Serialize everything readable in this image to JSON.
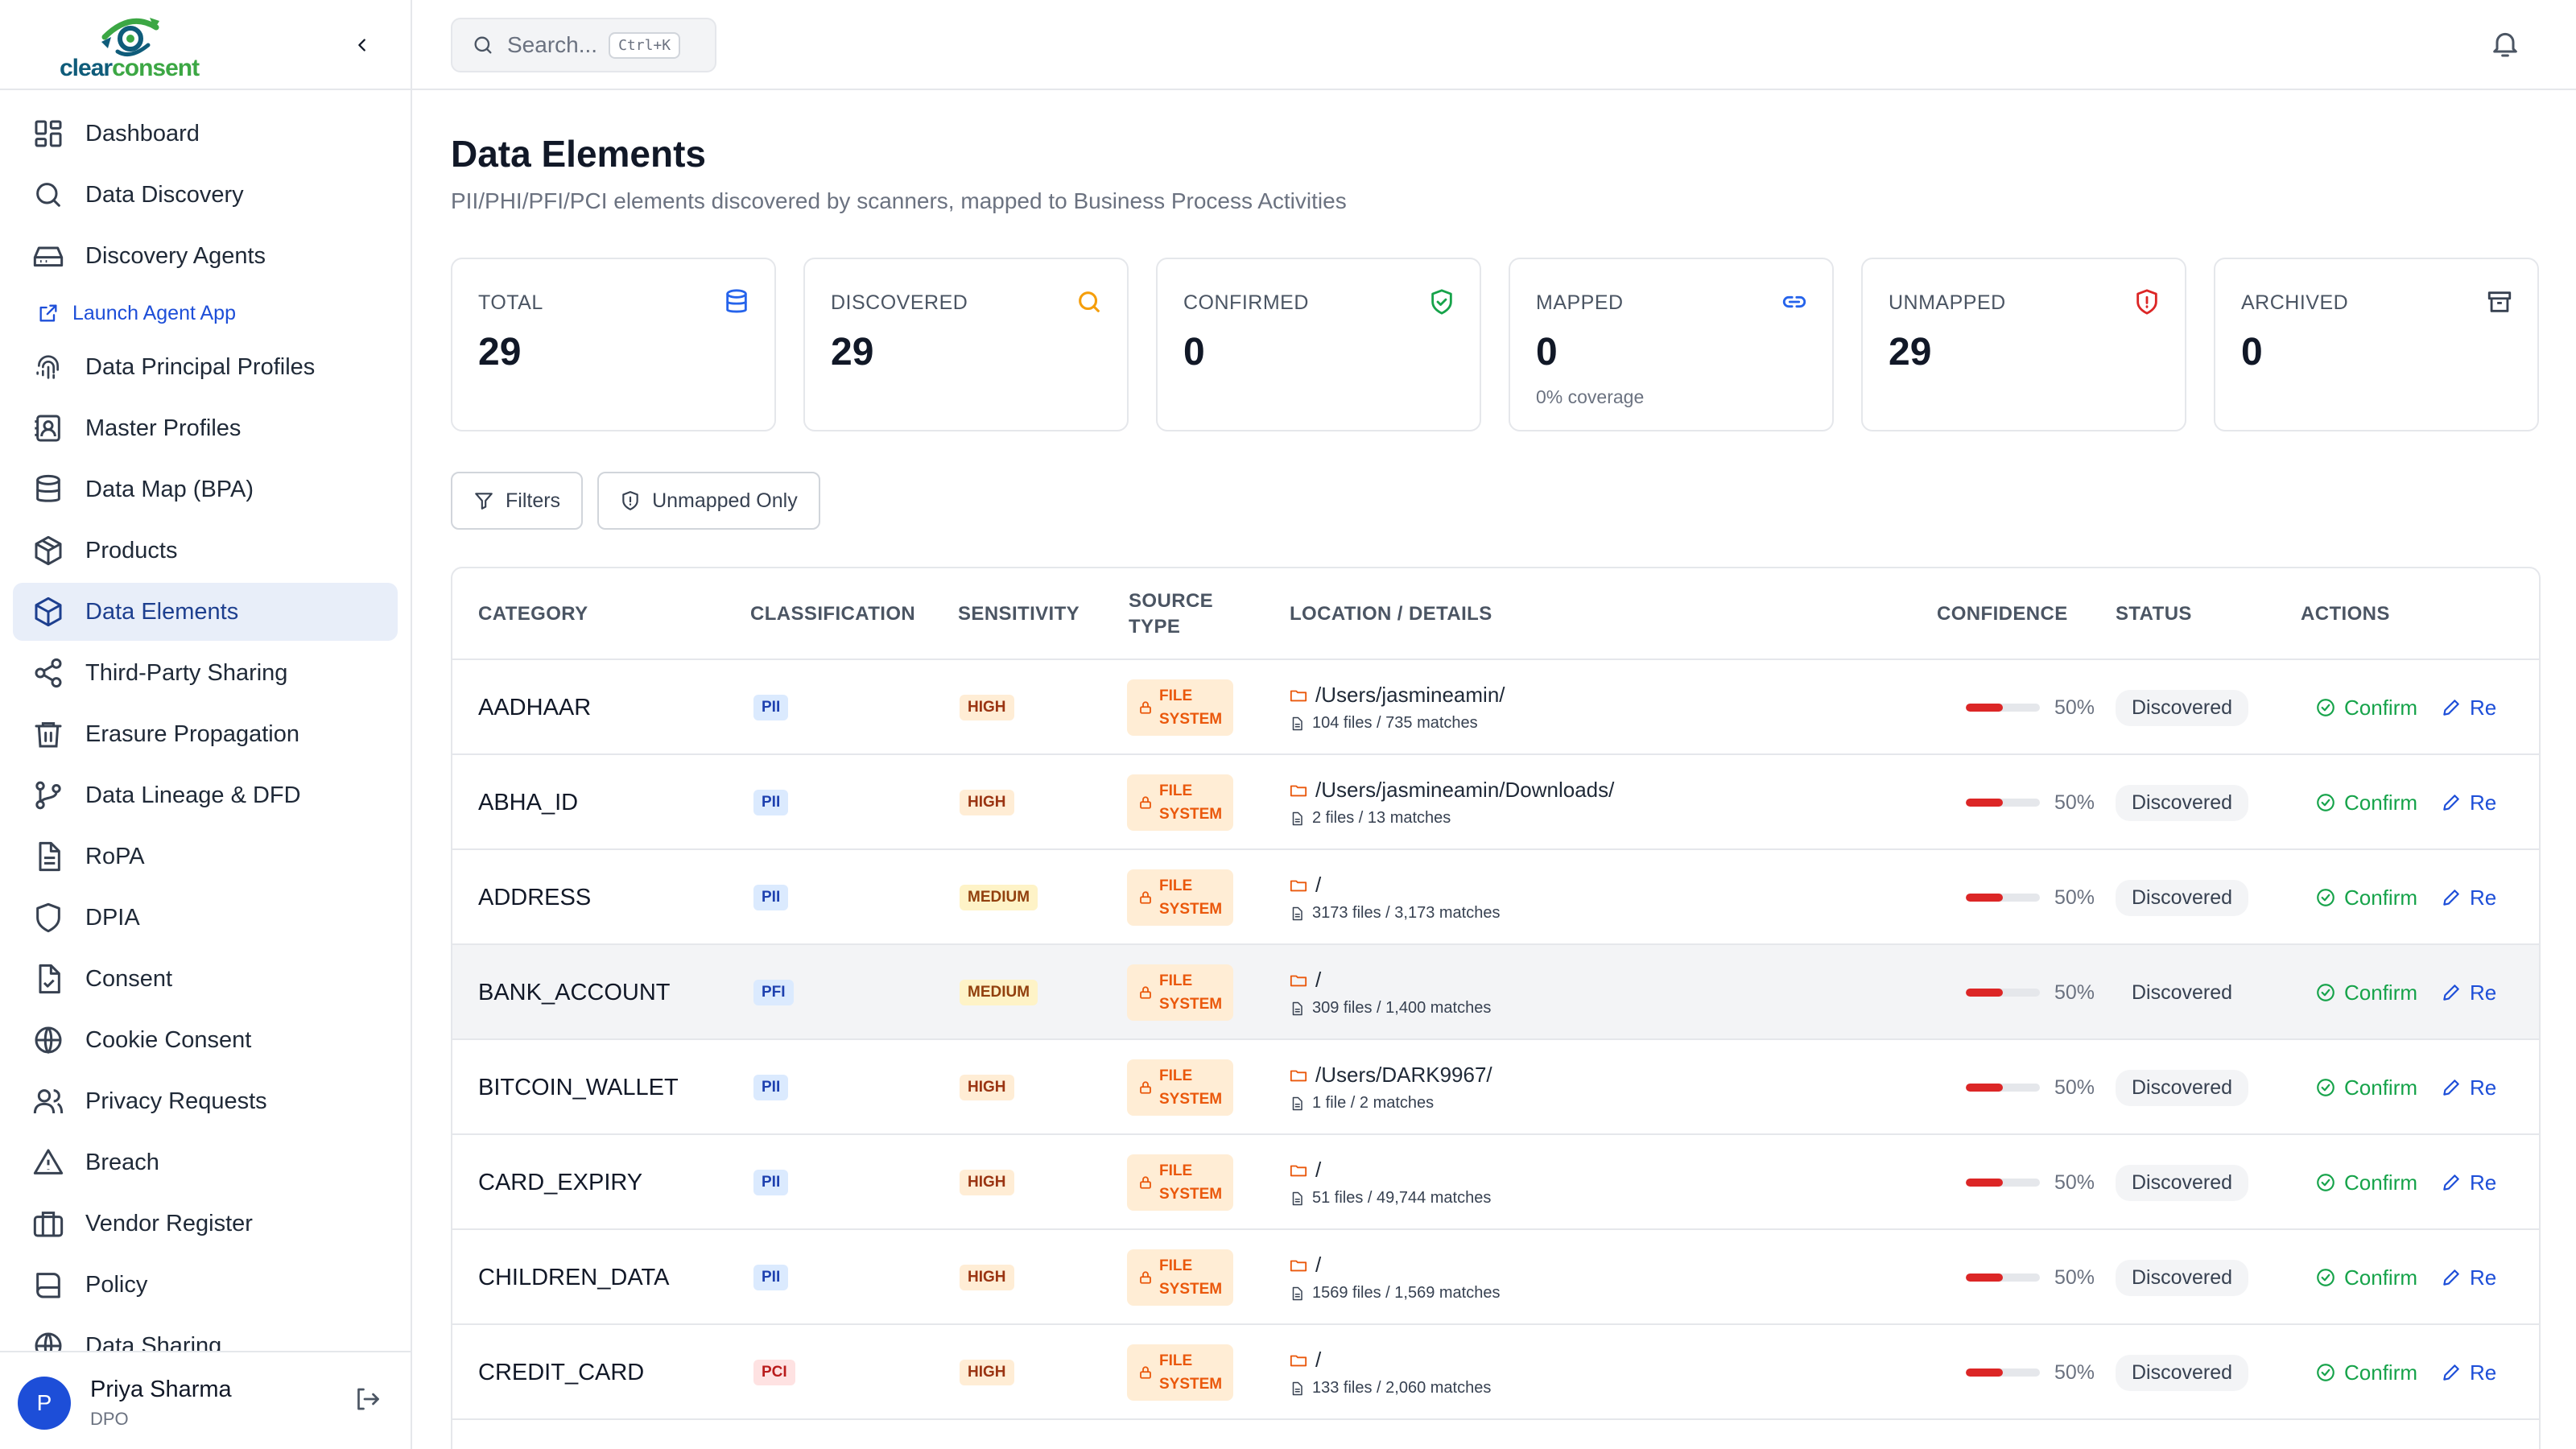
{
  "brand": {
    "name_part1": "clear",
    "name_part2": "consent"
  },
  "sidebar": {
    "items": [
      {
        "label": "Dashboard",
        "icon": "grid-icon"
      },
      {
        "label": "Data Discovery",
        "icon": "search-icon"
      },
      {
        "label": "Discovery Agents",
        "icon": "drive-icon"
      },
      {
        "label": "Launch Agent App",
        "icon": "external-link-icon"
      },
      {
        "label": "Data Principal Profiles",
        "icon": "fingerprint-icon"
      },
      {
        "label": "Master Profiles",
        "icon": "contact-book-icon"
      },
      {
        "label": "Data Map (BPA)",
        "icon": "database-icon"
      },
      {
        "label": "Products",
        "icon": "package-icon"
      },
      {
        "label": "Data Elements",
        "icon": "box-icon"
      },
      {
        "label": "Third-Party Sharing",
        "icon": "share-icon"
      },
      {
        "label": "Erasure Propagation",
        "icon": "trash-icon"
      },
      {
        "label": "Data Lineage & DFD",
        "icon": "git-branch-icon"
      },
      {
        "label": "RoPA",
        "icon": "document-icon"
      },
      {
        "label": "DPIA",
        "icon": "shield-icon"
      },
      {
        "label": "Consent",
        "icon": "file-check-icon"
      },
      {
        "label": "Cookie Consent",
        "icon": "globe-icon"
      },
      {
        "label": "Privacy Requests",
        "icon": "users-icon"
      },
      {
        "label": "Breach",
        "icon": "warning-icon"
      },
      {
        "label": "Vendor Register",
        "icon": "briefcase-icon"
      },
      {
        "label": "Policy",
        "icon": "book-icon"
      },
      {
        "label": "Data Sharing",
        "icon": "globe-icon"
      }
    ],
    "active": "Data Elements"
  },
  "user": {
    "initial": "P",
    "name": "Priya Sharma",
    "role": "DPO"
  },
  "search": {
    "placeholder": "Search...",
    "shortcut": "Ctrl+K"
  },
  "page": {
    "title": "Data Elements",
    "subtitle": "PII/PHI/PFI/PCI elements discovered by scanners, mapped to Business Process Activities"
  },
  "stats": [
    {
      "label": "TOTAL",
      "value": "29",
      "sub": "",
      "icon": "database-icon",
      "color": "#2563eb"
    },
    {
      "label": "DISCOVERED",
      "value": "29",
      "sub": "",
      "icon": "search-icon",
      "color": "#f59e0b"
    },
    {
      "label": "CONFIRMED",
      "value": "0",
      "sub": "",
      "icon": "shield-check-icon",
      "color": "#16a34a"
    },
    {
      "label": "MAPPED",
      "value": "0",
      "sub": "0% coverage",
      "icon": "link-icon",
      "color": "#2563eb"
    },
    {
      "label": "UNMAPPED",
      "value": "29",
      "sub": "",
      "icon": "shield-alert-icon",
      "color": "#dc2626"
    },
    {
      "label": "ARCHIVED",
      "value": "0",
      "sub": "",
      "icon": "archive-icon",
      "color": "#374151"
    }
  ],
  "filters": {
    "filters_label": "Filters",
    "unmapped_label": "Unmapped Only"
  },
  "table": {
    "headers": {
      "category": "CATEGORY",
      "classification": "CLASSIFICATION",
      "sensitivity": "SENSITIVITY",
      "source_type_1": "SOURCE",
      "source_type_2": "TYPE",
      "location": "LOCATION / DETAILS",
      "confidence": "CONFIDENCE",
      "status": "STATUS",
      "actions": "ACTIONS"
    },
    "rows": [
      {
        "category": "AADHAAR",
        "classification": "PII",
        "sensitivity": "HIGH",
        "source1": "FILE",
        "source2": "SYSTEM",
        "path": "/Users/jasmineamin/",
        "details": "104 files / 735 matches",
        "confidence": "50%",
        "confidence_value": 50,
        "status": "Discovered",
        "confirm": "Confirm",
        "remap": "Re"
      },
      {
        "category": "ABHA_ID",
        "classification": "PII",
        "sensitivity": "HIGH",
        "source1": "FILE",
        "source2": "SYSTEM",
        "path": "/Users/jasmineamin/Downloads/",
        "details": "2 files / 13 matches",
        "confidence": "50%",
        "confidence_value": 50,
        "status": "Discovered",
        "confirm": "Confirm",
        "remap": "Re"
      },
      {
        "category": "ADDRESS",
        "classification": "PII",
        "sensitivity": "MEDIUM",
        "source1": "FILE",
        "source2": "SYSTEM",
        "path": "/",
        "details": "3173 files / 3,173 matches",
        "confidence": "50%",
        "confidence_value": 50,
        "status": "Discovered",
        "confirm": "Confirm",
        "remap": "Re"
      },
      {
        "category": "BANK_ACCOUNT",
        "classification": "PFI",
        "sensitivity": "MEDIUM",
        "source1": "FILE",
        "source2": "SYSTEM",
        "path": "/",
        "details": "309 files / 1,400 matches",
        "confidence": "50%",
        "confidence_value": 50,
        "status": "Discovered",
        "confirm": "Confirm",
        "remap": "Re"
      },
      {
        "category": "BITCOIN_WALLET",
        "classification": "PII",
        "sensitivity": "HIGH",
        "source1": "FILE",
        "source2": "SYSTEM",
        "path": "/Users/DARK9967/",
        "details": "1 file / 2 matches",
        "confidence": "50%",
        "confidence_value": 50,
        "status": "Discovered",
        "confirm": "Confirm",
        "remap": "Re"
      },
      {
        "category": "CARD_EXPIRY",
        "classification": "PII",
        "sensitivity": "HIGH",
        "source1": "FILE",
        "source2": "SYSTEM",
        "path": "/",
        "details": "51 files / 49,744 matches",
        "confidence": "50%",
        "confidence_value": 50,
        "status": "Discovered",
        "confirm": "Confirm",
        "remap": "Re"
      },
      {
        "category": "CHILDREN_DATA",
        "classification": "PII",
        "sensitivity": "HIGH",
        "source1": "FILE",
        "source2": "SYSTEM",
        "path": "/",
        "details": "1569 files / 1,569 matches",
        "confidence": "50%",
        "confidence_value": 50,
        "status": "Discovered",
        "confirm": "Confirm",
        "remap": "Re"
      },
      {
        "category": "CREDIT_CARD",
        "classification": "PCI",
        "sensitivity": "HIGH",
        "source1": "FILE",
        "source2": "SYSTEM",
        "path": "/",
        "details": "133 files / 2,060 matches",
        "confidence": "50%",
        "confidence_value": 50,
        "status": "Discovered",
        "confirm": "Confirm",
        "remap": "Re"
      }
    ]
  }
}
